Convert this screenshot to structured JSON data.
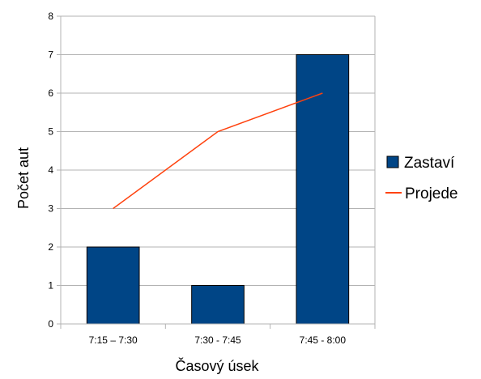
{
  "chart_data": {
    "type": "bar",
    "categories": [
      "7:15 – 7:30",
      "7:30 - 7:45",
      "7:45 - 8:00"
    ],
    "series": [
      {
        "name": "Zastaví",
        "type": "bar",
        "values": [
          2,
          1,
          7
        ],
        "color": "#004586"
      },
      {
        "name": "Projede",
        "type": "line",
        "values": [
          3,
          5,
          6
        ],
        "color": "#ff420e"
      }
    ],
    "xlabel": "Časový úsek",
    "ylabel": "Počet aut",
    "ylim": [
      0,
      8
    ],
    "yticks": [
      0,
      1,
      2,
      3,
      4,
      5,
      6,
      7,
      8
    ],
    "grid": true,
    "legend_position": "right"
  }
}
